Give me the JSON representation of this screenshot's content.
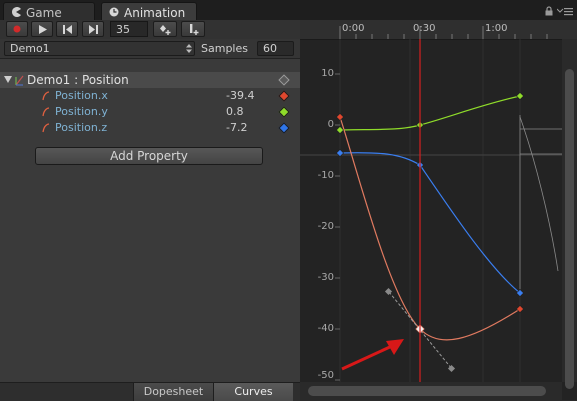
{
  "window_tabs": [
    {
      "label": "Game",
      "icon": "pacman-icon",
      "active": false
    },
    {
      "label": "Animation",
      "icon": "clock-icon",
      "active": true
    }
  ],
  "toolbar": {
    "frame_value": "35"
  },
  "clip": {
    "name": "Demo1",
    "samples_label": "Samples",
    "samples_value": "60"
  },
  "properties": {
    "group_label": "Demo1 : Position",
    "items": [
      {
        "name": "Position.x",
        "value": "-39.4",
        "color": "#e0472e"
      },
      {
        "name": "Position.y",
        "value": "0.8",
        "color": "#8fdc2a"
      },
      {
        "name": "Position.z",
        "value": "-7.2",
        "color": "#2f75e8"
      }
    ],
    "add_button": "Add Property"
  },
  "modes": [
    "Dopesheet",
    "Curves"
  ],
  "active_mode": "Curves",
  "timeline": {
    "time_labels": [
      "0:00",
      "0:30",
      "1:00"
    ],
    "playhead": "0:30"
  },
  "curves_axis": {
    "y_labels": [
      "10",
      "0",
      "-10",
      "-20",
      "-30",
      "-40",
      "-50"
    ]
  },
  "colors": {
    "playhead": "#d42020",
    "arrow": "#d81818"
  }
}
